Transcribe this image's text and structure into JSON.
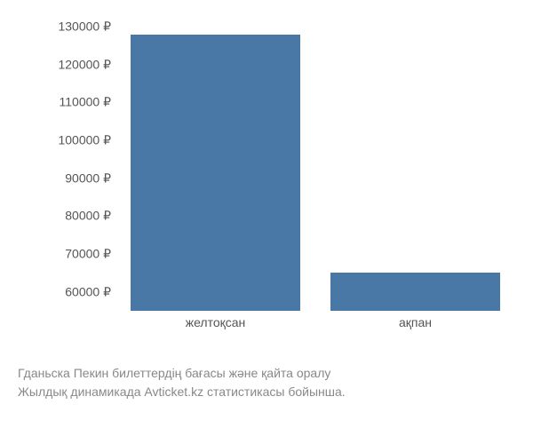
{
  "chart": {
    "type": "bar",
    "categories": [
      "желтоқсан",
      "ақпан"
    ],
    "values": [
      128000,
      65000
    ],
    "bar_color": "#4a78a6",
    "background_color": "#ffffff",
    "y_min": 55000,
    "y_max": 130000,
    "y_ticks": [
      60000,
      70000,
      80000,
      90000,
      100000,
      110000,
      120000,
      130000
    ],
    "y_tick_labels": [
      "60000 ₽",
      "70000 ₽",
      "80000 ₽",
      "90000 ₽",
      "100000 ₽",
      "110000 ₽",
      "120000 ₽",
      "130000 ₽"
    ],
    "currency_symbol": "₽",
    "bar_width_ratio": 0.85,
    "axis_label_color": "#555555",
    "axis_label_fontsize": 14
  },
  "caption": {
    "line1": "Гданьска Пекин билеттердің бағасы және қайта оралу",
    "line2": "Жылдық динамикада Avticket.kz статистикасы бойынша.",
    "color": "#888888",
    "fontsize": 14
  }
}
